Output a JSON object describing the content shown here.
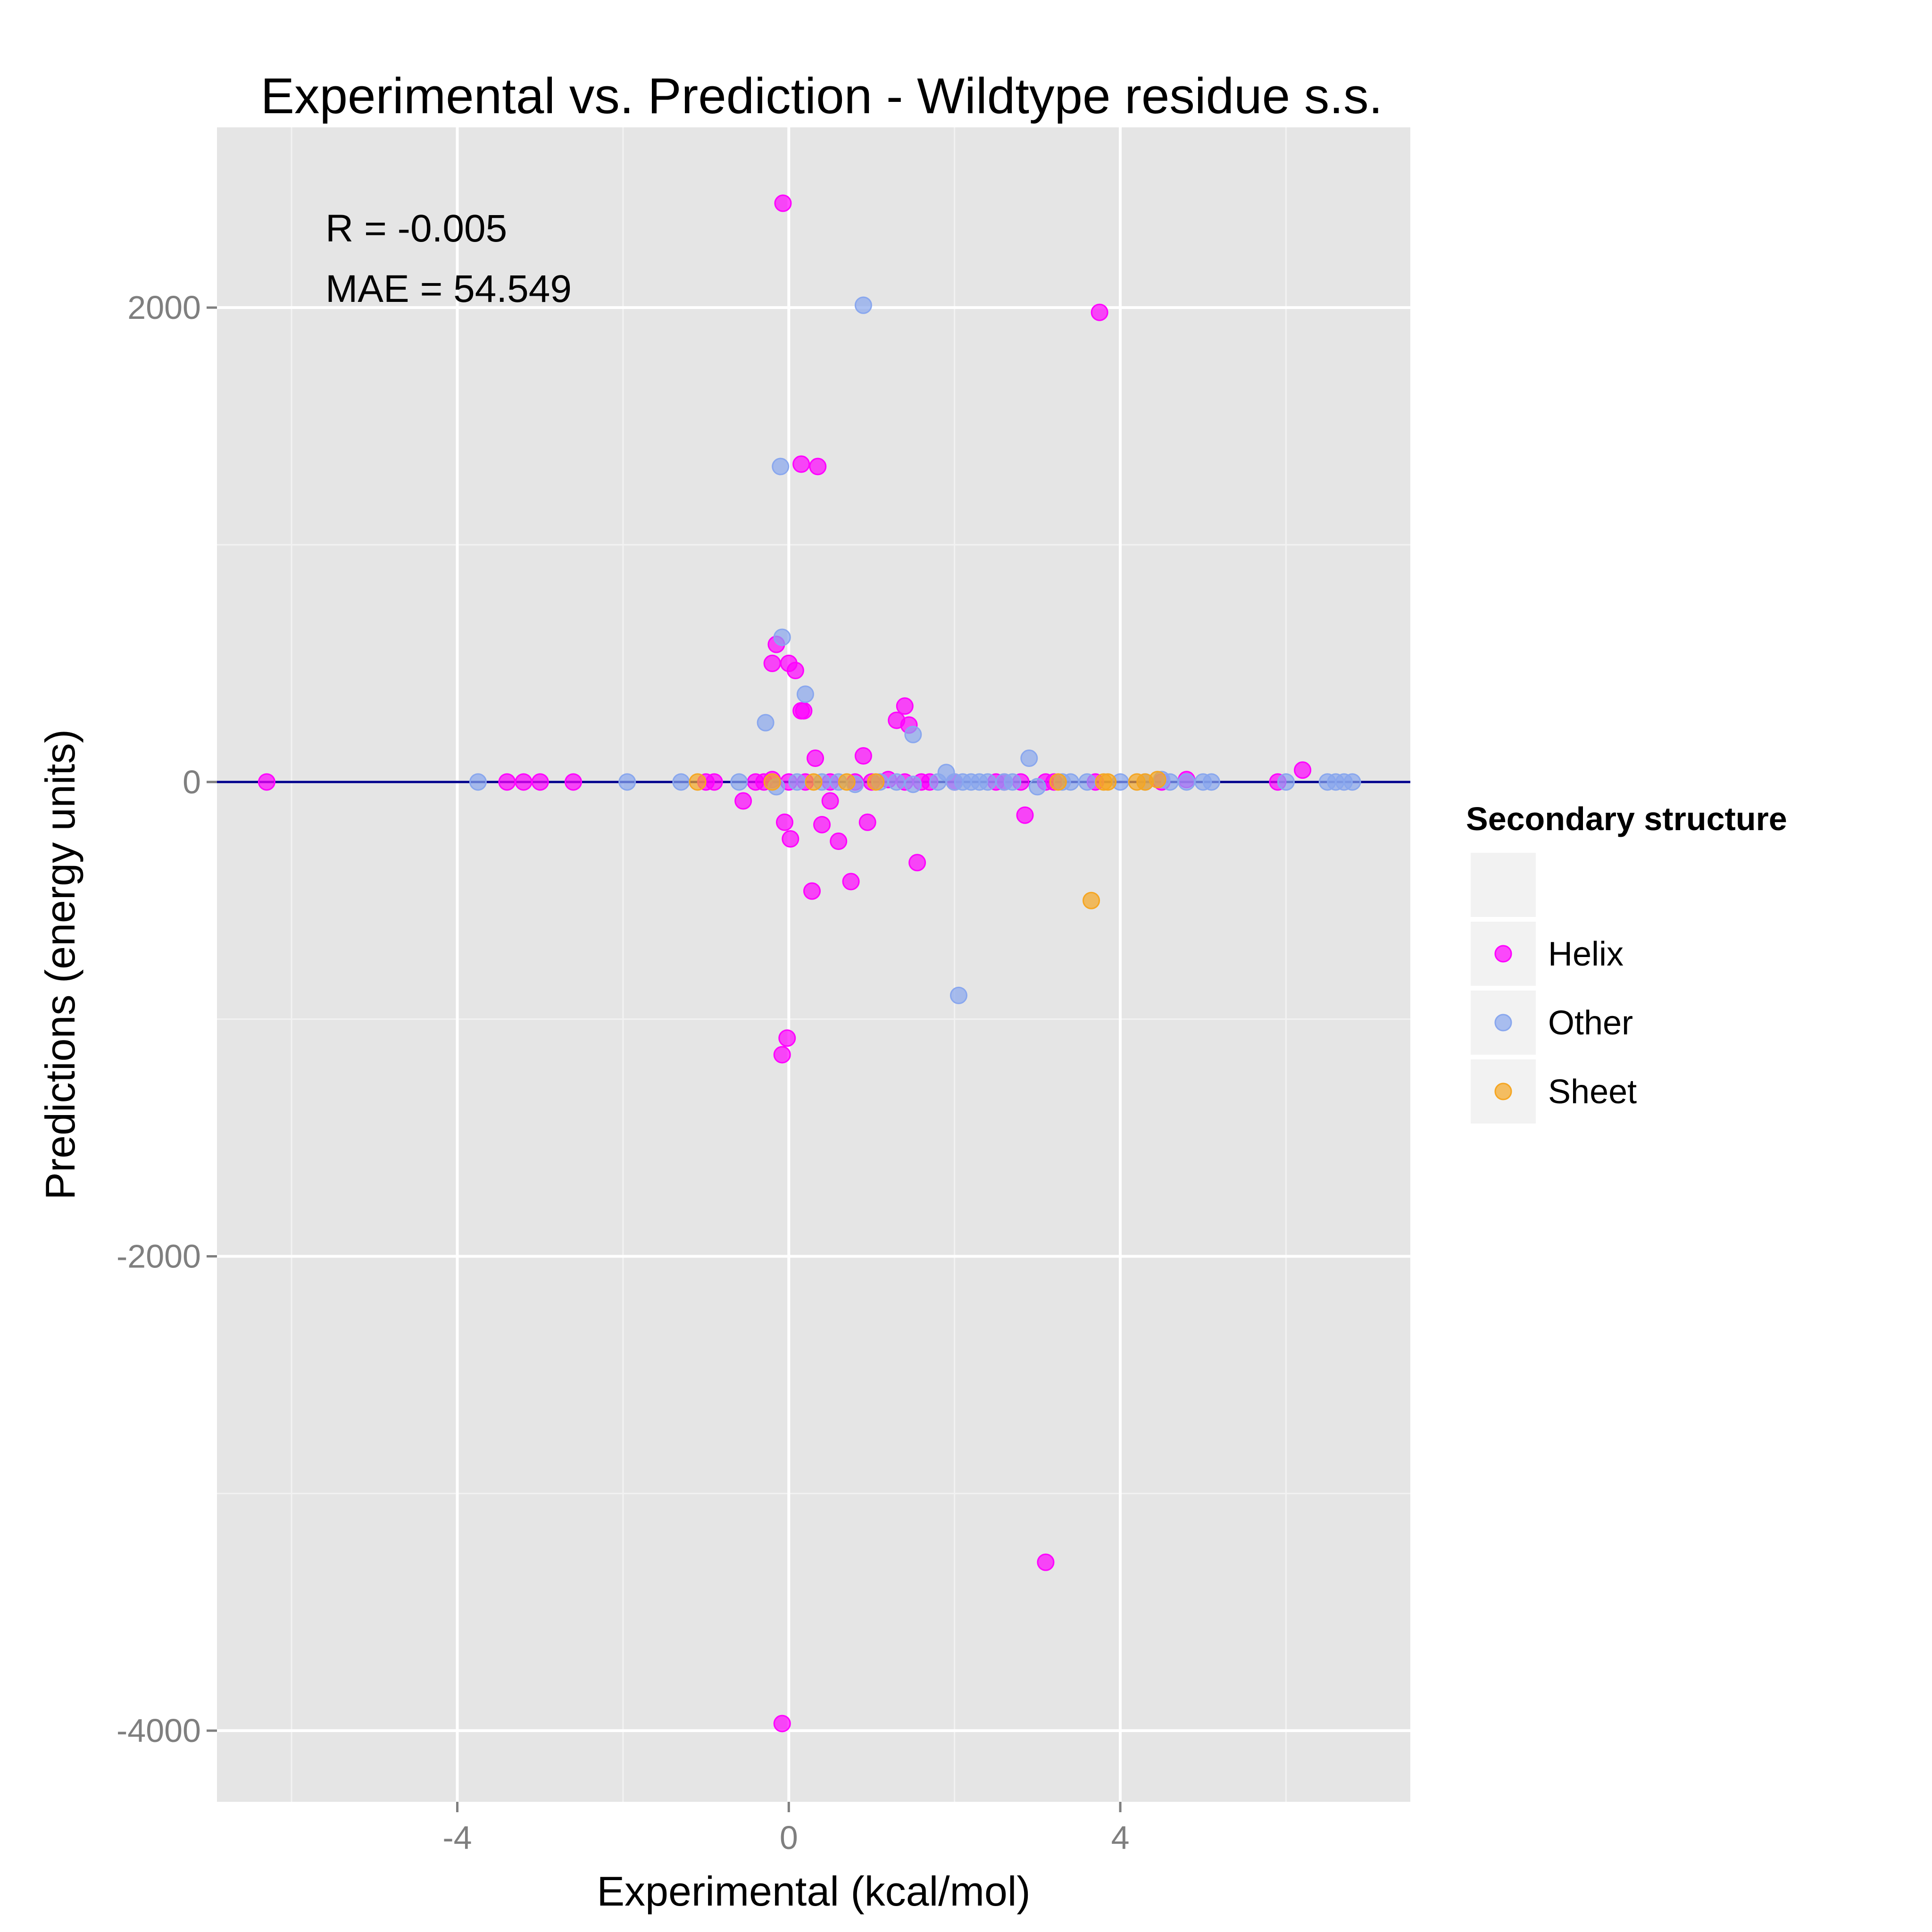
{
  "chart_data": {
    "type": "scatter",
    "title": "Experimental vs. Prediction - Wildtype residue s.s.",
    "xlabel": "Experimental (kcal/mol)",
    "ylabel": "Predictions (energy units)",
    "xlim": [
      -6.9,
      7.5
    ],
    "ylim": [
      -4300,
      2760
    ],
    "x_ticks": [
      -4,
      0,
      4
    ],
    "x_tick_labels": [
      "-4",
      "0",
      "4"
    ],
    "y_ticks": [
      -4000,
      -2000,
      0,
      2000
    ],
    "y_tick_labels": [
      "-4000",
      "-2000",
      "0",
      "2000"
    ],
    "grid": true,
    "background": "#e5e5e5",
    "reference_line": {
      "y": 0,
      "color": "#00008b"
    },
    "annotations": [
      "R = -0.005",
      "MAE = 54.549"
    ],
    "legend": {
      "title": "Secondary structure",
      "position": "right",
      "entries": [
        "",
        "Helix",
        "Other",
        "Sheet"
      ]
    },
    "series": [
      {
        "name": "Helix",
        "color": "#ff00ff",
        "points": [
          [
            -0.07,
            2440
          ],
          [
            3.75,
            1980
          ],
          [
            0.15,
            1340
          ],
          [
            0.35,
            1330
          ],
          [
            -0.15,
            580
          ],
          [
            0.0,
            500
          ],
          [
            -0.2,
            500
          ],
          [
            0.08,
            470
          ],
          [
            0.15,
            300
          ],
          [
            0.18,
            300
          ],
          [
            1.4,
            320
          ],
          [
            1.3,
            260
          ],
          [
            1.45,
            240
          ],
          [
            0.32,
            100
          ],
          [
            0.9,
            110
          ],
          [
            6.2,
            50
          ],
          [
            -6.3,
            0
          ],
          [
            -3.4,
            0
          ],
          [
            -3.2,
            0
          ],
          [
            -3.0,
            0
          ],
          [
            -2.6,
            0
          ],
          [
            -1.0,
            0
          ],
          [
            -0.9,
            0
          ],
          [
            -0.4,
            0
          ],
          [
            -0.3,
            0
          ],
          [
            -0.2,
            10
          ],
          [
            0.0,
            0
          ],
          [
            0.2,
            0
          ],
          [
            0.5,
            0
          ],
          [
            0.8,
            0
          ],
          [
            1.0,
            0
          ],
          [
            1.2,
            10
          ],
          [
            1.4,
            0
          ],
          [
            1.6,
            0
          ],
          [
            1.7,
            0
          ],
          [
            2.0,
            0
          ],
          [
            2.5,
            0
          ],
          [
            2.6,
            0
          ],
          [
            2.8,
            0
          ],
          [
            3.1,
            0
          ],
          [
            3.2,
            0
          ],
          [
            3.7,
            0
          ],
          [
            4.5,
            0
          ],
          [
            4.8,
            10
          ],
          [
            5.9,
            0
          ],
          [
            -0.55,
            -80
          ],
          [
            0.5,
            -80
          ],
          [
            -0.05,
            -170
          ],
          [
            0.95,
            -170
          ],
          [
            0.02,
            -240
          ],
          [
            0.6,
            -250
          ],
          [
            0.4,
            -180
          ],
          [
            2.85,
            -140
          ],
          [
            1.55,
            -340
          ],
          [
            0.75,
            -420
          ],
          [
            0.28,
            -460
          ],
          [
            -0.02,
            -1080
          ],
          [
            -0.08,
            -1150
          ],
          [
            3.1,
            -3290
          ],
          [
            -0.08,
            -3970
          ]
        ]
      },
      {
        "name": "Other",
        "color": "#89a7ee",
        "points": [
          [
            0.9,
            2010
          ],
          [
            -0.1,
            1330
          ],
          [
            -0.08,
            610
          ],
          [
            0.2,
            370
          ],
          [
            -0.28,
            250
          ],
          [
            1.5,
            200
          ],
          [
            2.9,
            100
          ],
          [
            1.9,
            40
          ],
          [
            -3.75,
            0
          ],
          [
            -1.95,
            0
          ],
          [
            -1.3,
            0
          ],
          [
            -0.6,
            0
          ],
          [
            -0.15,
            -20
          ],
          [
            0.1,
            0
          ],
          [
            0.4,
            0
          ],
          [
            0.6,
            0
          ],
          [
            0.8,
            -10
          ],
          [
            1.1,
            0
          ],
          [
            1.3,
            0
          ],
          [
            1.5,
            -10
          ],
          [
            1.8,
            0
          ],
          [
            2.0,
            0
          ],
          [
            2.1,
            0
          ],
          [
            2.2,
            0
          ],
          [
            2.3,
            0
          ],
          [
            2.4,
            0
          ],
          [
            2.6,
            0
          ],
          [
            2.7,
            0
          ],
          [
            3.0,
            -20
          ],
          [
            3.3,
            0
          ],
          [
            3.4,
            0
          ],
          [
            3.6,
            0
          ],
          [
            4.0,
            0
          ],
          [
            4.3,
            0
          ],
          [
            4.5,
            10
          ],
          [
            4.6,
            0
          ],
          [
            4.8,
            0
          ],
          [
            5.0,
            0
          ],
          [
            5.1,
            0
          ],
          [
            6.0,
            0
          ],
          [
            6.5,
            0
          ],
          [
            6.6,
            0
          ],
          [
            6.7,
            0
          ],
          [
            6.8,
            0
          ],
          [
            2.05,
            -900
          ]
        ]
      },
      {
        "name": "Sheet",
        "color": "#f5a623",
        "points": [
          [
            -1.1,
            0
          ],
          [
            -0.2,
            0
          ],
          [
            0.3,
            0
          ],
          [
            0.7,
            0
          ],
          [
            1.05,
            0
          ],
          [
            3.25,
            0
          ],
          [
            3.8,
            0
          ],
          [
            3.85,
            0
          ],
          [
            4.2,
            0
          ],
          [
            4.3,
            0
          ],
          [
            4.45,
            10
          ],
          [
            3.65,
            -500
          ]
        ]
      }
    ]
  }
}
